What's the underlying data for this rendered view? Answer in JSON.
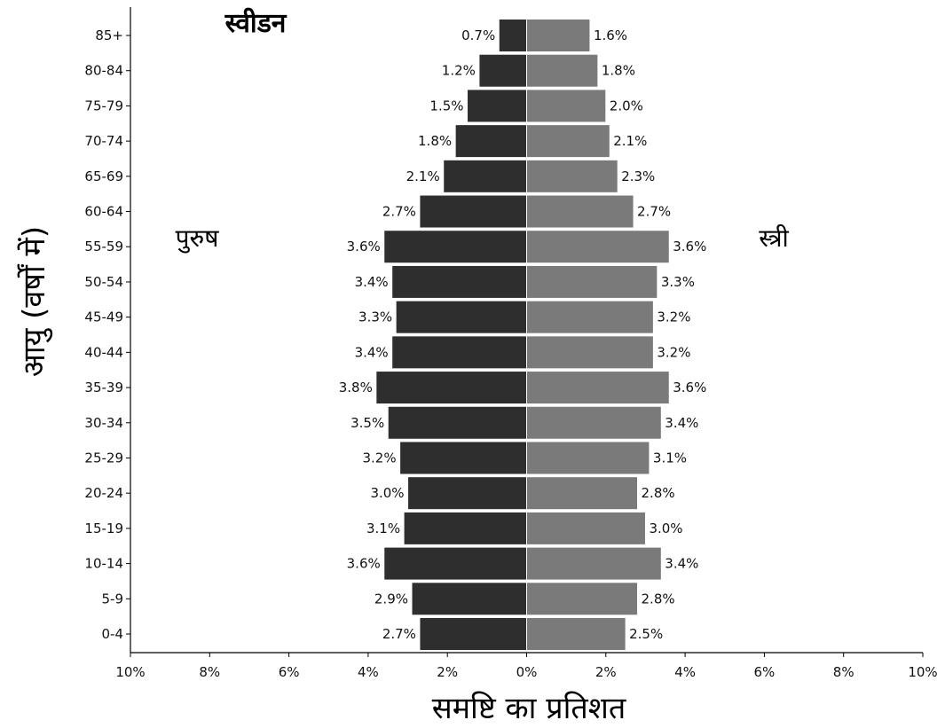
{
  "chart_data": {
    "type": "bar",
    "orientation": "horizontal",
    "subtype": "population-pyramid",
    "title": "स्वीडन",
    "xlabel": "समष्टि का प्रतिशत",
    "ylabel": "आयु (वर्षों में)",
    "side_labels": {
      "left": "पुरुष",
      "right": "स्त्री"
    },
    "categories": [
      "0-4",
      "5-9",
      "10-14",
      "15-19",
      "20-24",
      "25-29",
      "30-34",
      "35-39",
      "40-44",
      "45-49",
      "50-54",
      "55-59",
      "60-64",
      "65-69",
      "70-74",
      "75-79",
      "80-84",
      "85+"
    ],
    "series": [
      {
        "name": "पुरुष",
        "color": "#2e2e2e",
        "values": [
          2.7,
          2.9,
          3.6,
          3.1,
          3.0,
          3.2,
          3.5,
          3.8,
          3.4,
          3.3,
          3.4,
          3.6,
          2.7,
          2.1,
          1.8,
          1.5,
          1.2,
          0.7
        ],
        "labels": [
          "2.7%",
          "2.9%",
          "3.6%",
          "3.1%",
          "3.0%",
          "3.2%",
          "3.5%",
          "3.8%",
          "3.4%",
          "3.3%",
          "3.4%",
          "3.6%",
          "2.7%",
          "2.1%",
          "1.8%",
          "1.5%",
          "1.2%",
          "0.7%"
        ]
      },
      {
        "name": "स्त्री",
        "color": "#7a7a7a",
        "values": [
          2.5,
          2.8,
          3.4,
          3.0,
          2.8,
          3.1,
          3.4,
          3.6,
          3.2,
          3.2,
          3.3,
          3.6,
          2.7,
          2.3,
          2.1,
          2.0,
          1.8,
          1.6
        ],
        "labels": [
          "2.5%",
          "2.8%",
          "3.4%",
          "3.0%",
          "2.8%",
          "3.1%",
          "3.4%",
          "3.6%",
          "3.2%",
          "3.2%",
          "3.3%",
          "3.6%",
          "2.7%",
          "2.3%",
          "2.1%",
          "2.0%",
          "1.8%",
          "1.6%"
        ]
      }
    ],
    "xlim": [
      -10,
      10
    ],
    "x_ticks": [
      "10%",
      "8%",
      "6%",
      "4%",
      "2%",
      "0%",
      "2%",
      "4%",
      "6%",
      "8%",
      "10%"
    ],
    "grid": false,
    "legend": "none"
  }
}
